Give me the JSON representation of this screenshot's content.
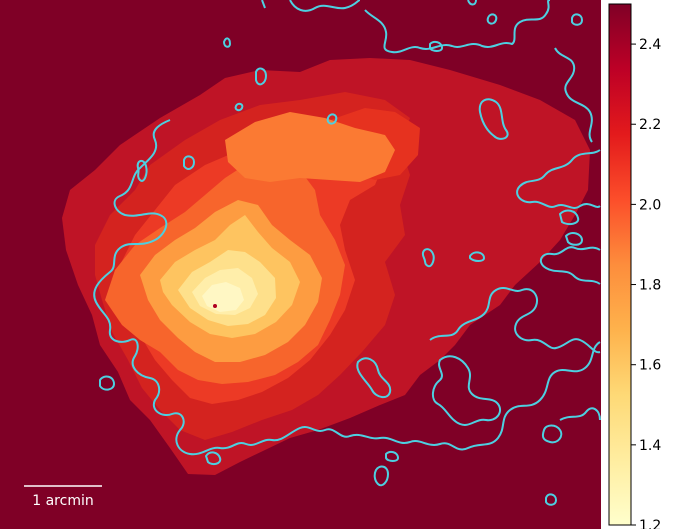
{
  "map": {
    "scalebar_label": "1 arcmin",
    "contour_color": "#4dd0e1",
    "background_color": "#7f0026"
  },
  "colorbar": {
    "min": 1.2,
    "max": 2.5,
    "ticks": [
      {
        "value": 1.2,
        "label": "1.2"
      },
      {
        "value": 1.4,
        "label": "1.4"
      },
      {
        "value": 1.6,
        "label": "1.6"
      },
      {
        "value": 1.8,
        "label": "1.8"
      },
      {
        "value": 2.0,
        "label": "2.0"
      },
      {
        "value": 2.2,
        "label": "2.2"
      },
      {
        "value": 2.4,
        "label": "2.4"
      }
    ],
    "colormap": [
      "#ffffcc",
      "#ffeda0",
      "#fed976",
      "#feb24c",
      "#fd8d3c",
      "#fc4e2a",
      "#e31a1c",
      "#bd0026",
      "#800026"
    ]
  }
}
